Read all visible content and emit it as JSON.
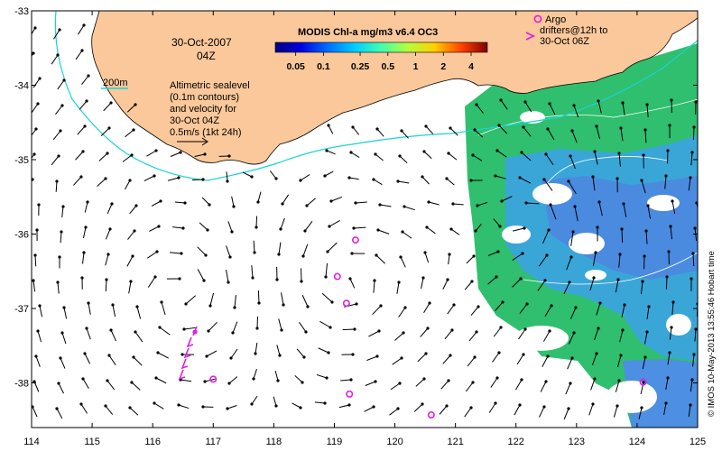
{
  "map": {
    "date_label": "30-Oct-2007",
    "time_label": "04Z",
    "depth_label": "200m",
    "altimetry_lines": [
      "Altimetric sealevel",
      "(0.1m contours)",
      "and velocity for",
      "30-Oct 04Z",
      "0.5m/s (1kt 24h)"
    ],
    "argo_lines": [
      "Argo",
      "drifters@12h to",
      "30-Oct 06Z"
    ],
    "side_stamp": "© IMOS 10-May-2013 13:55:46 Hobart time",
    "colors": {
      "land": "#fac89a",
      "isobath": "#19d4d4",
      "argo": "#e020e0",
      "arrow": "#000000",
      "contour": "#ffffff"
    }
  },
  "colorbar": {
    "title": "MODIS Chl-a mg/m3 v6.4 OC3",
    "ticks": [
      {
        "label": "0.05",
        "value": 0.05
      },
      {
        "label": "0.1",
        "value": 0.1
      },
      {
        "label": "0.25",
        "value": 0.25
      },
      {
        "label": "0.5",
        "value": 0.5
      },
      {
        "label": "1",
        "value": 1
      },
      {
        "label": "2",
        "value": 2
      },
      {
        "label": "4",
        "value": 4
      }
    ]
  },
  "axes": {
    "x_ticks": [
      "114",
      "115",
      "116",
      "117",
      "118",
      "119",
      "120",
      "121",
      "122",
      "123",
      "124",
      "125"
    ],
    "y_ticks": [
      "-33",
      "-34",
      "-35",
      "-36",
      "-37",
      "-38"
    ],
    "lon_range": [
      114,
      125
    ],
    "lat_range": [
      -38.6,
      -33
    ]
  },
  "argo_floats": [
    {
      "lon": 119.35,
      "lat": -36.08
    },
    {
      "lon": 119.05,
      "lat": -36.57
    },
    {
      "lon": 119.2,
      "lat": -36.93
    },
    {
      "lon": 117.0,
      "lat": -37.95
    },
    {
      "lon": 119.25,
      "lat": -38.15
    },
    {
      "lon": 120.6,
      "lat": -38.43
    },
    {
      "lon": 124.1,
      "lat": -37.99
    }
  ]
}
